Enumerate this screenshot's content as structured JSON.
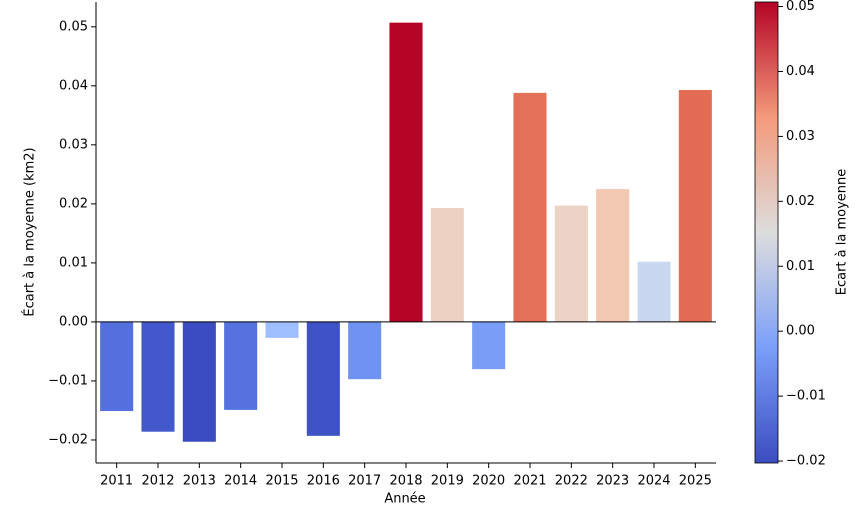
{
  "chart_data": {
    "type": "bar",
    "x_label": "Année",
    "y_label": "Écart à la moyenne (km2)",
    "categories": [
      "2011",
      "2012",
      "2013",
      "2014",
      "2015",
      "2016",
      "2017",
      "2018",
      "2019",
      "2020",
      "2021",
      "2022",
      "2023",
      "2024",
      "2025"
    ],
    "values": [
      -0.0151,
      -0.0186,
      -0.0203,
      -0.0149,
      -0.0027,
      -0.0193,
      -0.0097,
      0.0507,
      0.0193,
      -0.008,
      0.0388,
      0.0197,
      0.0225,
      0.0102,
      0.0393
    ],
    "colors": [
      "#5470de",
      "#4358cb",
      "#3b4cc0",
      "#5572df",
      "#9ebeff",
      "#3f53c6",
      "#6f92f3",
      "#b40426",
      "#edd1c2",
      "#7a9df8",
      "#e57058",
      "#ecd3c5",
      "#f3c8b2",
      "#c9d7f0",
      "#e36c55"
    ],
    "ylim": [
      -0.0239,
      0.0542
    ],
    "yticks": [
      {
        "value": -0.02,
        "label": "−0.02"
      },
      {
        "value": -0.01,
        "label": "−0.01"
      },
      {
        "value": 0,
        "label": "0.00"
      },
      0.01,
      0.02,
      0.03,
      0.04,
      0.05
    ],
    "colorbar": {
      "label": "Ecart à la moyenne",
      "lim": [
        -0.0203,
        0.0507
      ],
      "ticks": [
        {
          "value": -0.02,
          "label": "−0.02"
        },
        {
          "value": -0.01,
          "label": "−0.01"
        },
        {
          "value": 0,
          "label": "0.00"
        },
        0.01,
        0.02,
        0.03,
        0.04,
        0.05
      ]
    }
  }
}
